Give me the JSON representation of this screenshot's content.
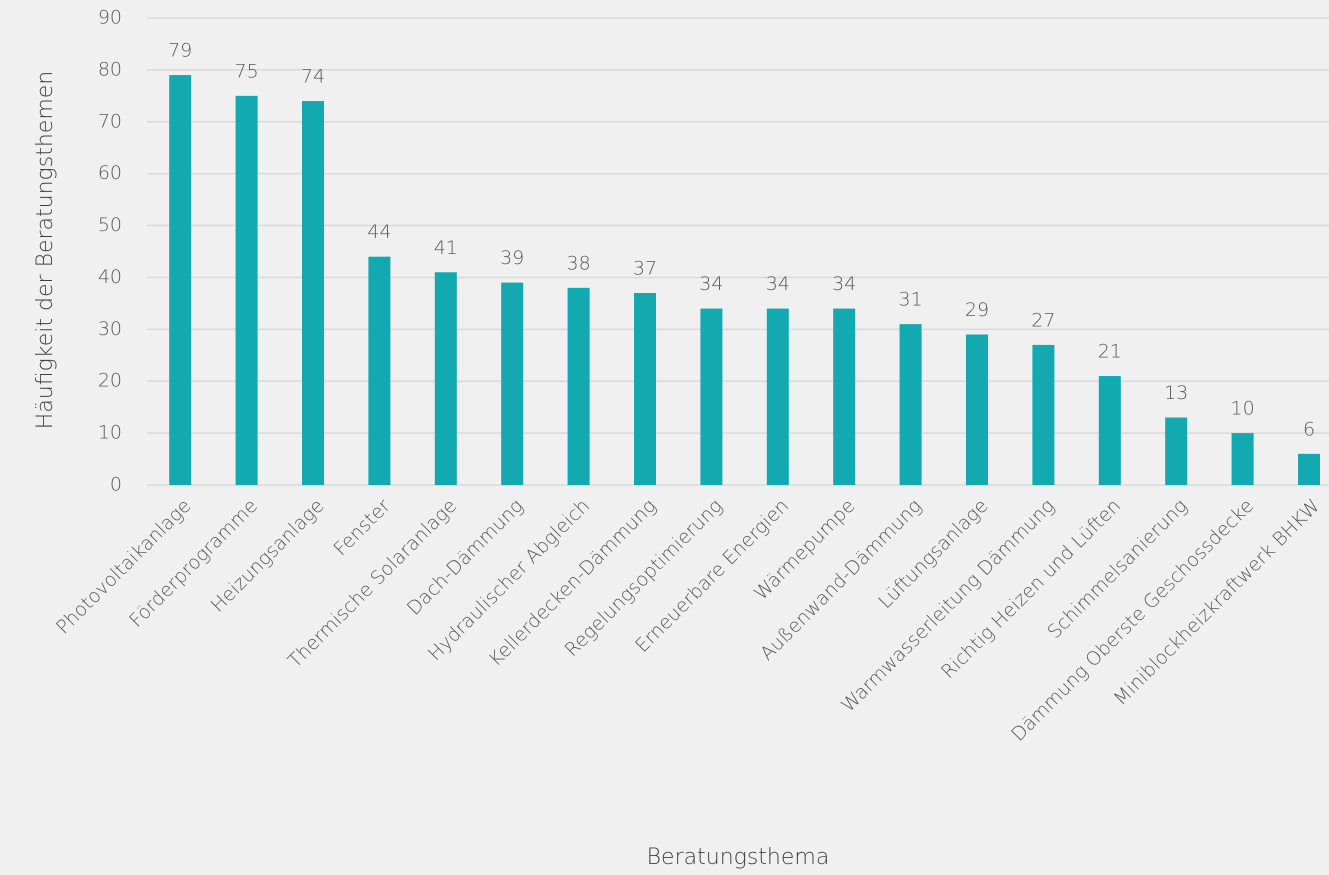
{
  "chart_data": {
    "type": "bar",
    "x_label": "Beratungsthema",
    "y_label": "Häufigkeit der Beratungsthemen",
    "categories": [
      "Photovoltaikanlage",
      "Förderprogramme",
      "Heizungsanlage",
      "Fenster",
      "Thermische Solaranlage",
      "Dach-Dämmung",
      "Hydraulischer Abgleich",
      "Kellerdecken-Dämmung",
      "Regelungsoptimierung",
      "Erneuerbare Energien",
      "Wärmepumpe",
      "Außenwand-Dämmung",
      "Lüftungsanlage",
      "Warmwasserleitung Dämmung",
      "Richtig Heizen und Lüften",
      "Schimmelsanierung",
      "Dämmung Oberste Geschossdecke",
      "Miniblockheizkraftwerk BHKW"
    ],
    "values": [
      79,
      75,
      74,
      44,
      41,
      39,
      38,
      37,
      34,
      34,
      34,
      31,
      29,
      27,
      21,
      13,
      10,
      6
    ],
    "color": "#12a9b0",
    "ylim": [
      0,
      90
    ],
    "yticks": [
      0,
      10,
      20,
      30,
      40,
      50,
      60,
      70,
      80,
      90
    ],
    "grid": true
  }
}
